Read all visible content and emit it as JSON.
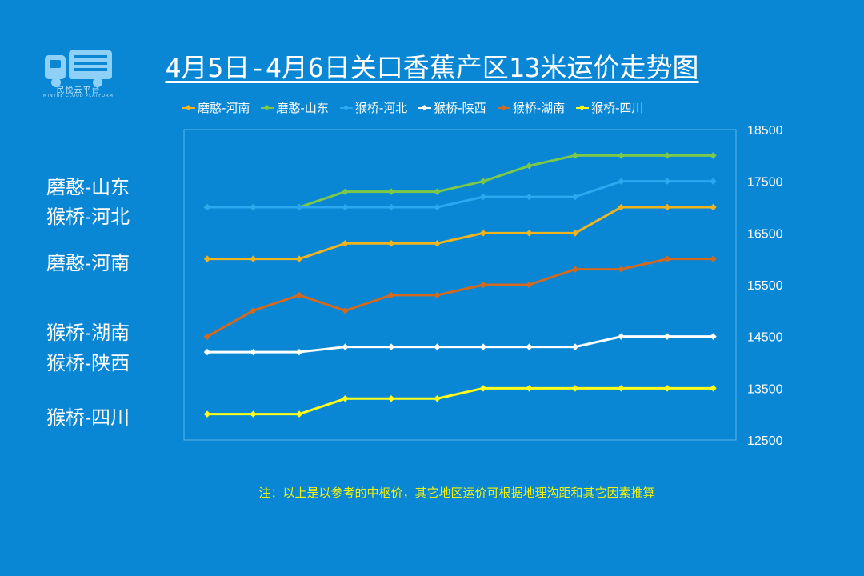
{
  "logo": {
    "name": "truck-logo-icon",
    "text": "民悦云平台",
    "subtext": "MINYUE CLOUD PLATFORM"
  },
  "title": "4月5日-4月6日关口香蕉产区13米运价走势图",
  "side_labels": [
    "磨憨-山东",
    "猴桥-河北",
    "磨憨-河南",
    "猴桥-湖南",
    "猴桥-陕西",
    "猴桥-四川"
  ],
  "note": "注：以上是以参考的中枢价，其它地区运价可根据地理沟距和其它因素推算",
  "colors": {
    "background": "#0a87d4",
    "gridline": "#5bb6ea"
  },
  "chart_data": {
    "type": "line",
    "title": "4月5日-4月6日关口香蕉产区13米运价走势图",
    "x": [
      1,
      2,
      3,
      4,
      5,
      6,
      7,
      8,
      9,
      10,
      11,
      12
    ],
    "ylim": [
      12500,
      18500
    ],
    "y_ticks": [
      "18500",
      "17500",
      "16500",
      "15500",
      "14500",
      "13500",
      "12500"
    ],
    "y_axis_side": "right",
    "grid": false,
    "legend_position": "top",
    "series": [
      {
        "name": "磨憨-河南",
        "color": "#f0b41e",
        "values": [
          16000,
          16000,
          16000,
          16300,
          16300,
          16300,
          16500,
          16500,
          16500,
          17000,
          17000,
          17000
        ]
      },
      {
        "name": "磨憨-山东",
        "color": "#7cc84a",
        "values": [
          17000,
          17000,
          17000,
          17300,
          17300,
          17300,
          17500,
          17800,
          18000,
          18000,
          18000,
          18000
        ]
      },
      {
        "name": "猴桥-河北",
        "color": "#2aa8f0",
        "values": [
          17000,
          17000,
          17000,
          17000,
          17000,
          17000,
          17200,
          17200,
          17200,
          17500,
          17500,
          17500
        ]
      },
      {
        "name": "猴桥-陕西",
        "color": "#ffffff",
        "values": [
          14200,
          14200,
          14200,
          14300,
          14300,
          14300,
          14300,
          14300,
          14300,
          14500,
          14500,
          14500
        ]
      },
      {
        "name": "猴桥-湖南",
        "color": "#d2691e",
        "values": [
          14500,
          15000,
          15300,
          15000,
          15300,
          15300,
          15500,
          15500,
          15800,
          15800,
          16000,
          16000
        ]
      },
      {
        "name": "猴桥-四川",
        "color": "#ffff1a",
        "values": [
          13000,
          13000,
          13000,
          13300,
          13300,
          13300,
          13500,
          13500,
          13500,
          13500,
          13500,
          13500
        ]
      }
    ]
  }
}
